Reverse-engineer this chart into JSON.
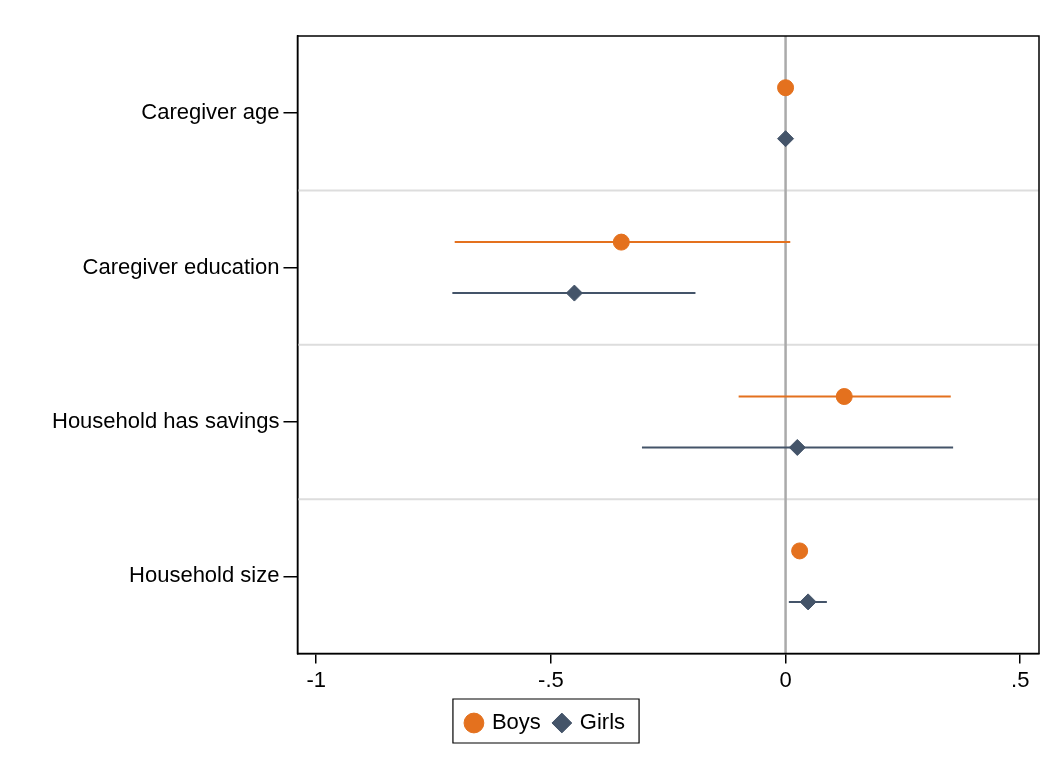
{
  "chart_data": {
    "type": "scatter",
    "orientation": "horizontal",
    "categories": [
      "Caregiver age",
      "Caregiver education",
      "Household has savings",
      "Household size"
    ],
    "series": [
      {
        "name": "Boys",
        "color": "#e4711e",
        "marker": "circle",
        "values": [
          0.0,
          -0.35,
          0.125,
          0.03
        ],
        "errors": [
          null,
          [
            -0.705,
            0.01
          ],
          [
            -0.1,
            0.352
          ],
          null
        ]
      },
      {
        "name": "Girls",
        "color": "#445469",
        "marker": "diamond",
        "values": [
          0.0,
          -0.45,
          0.025,
          0.048
        ],
        "errors": [
          null,
          [
            -0.71,
            -0.192
          ],
          [
            -0.306,
            0.357
          ],
          [
            0.007,
            0.088
          ]
        ]
      }
    ],
    "xlim": [
      -1.04,
      0.54
    ],
    "xticks": [
      -1,
      {
        "value": -0.5,
        "label": "-.5"
      },
      0,
      {
        "value": 0.5,
        "label": ".5"
      }
    ],
    "ref_lines": [
      {
        "axis": "x",
        "value": 0,
        "color": "#aaaaaa"
      }
    ],
    "grid": "y",
    "legend": "bottom"
  }
}
